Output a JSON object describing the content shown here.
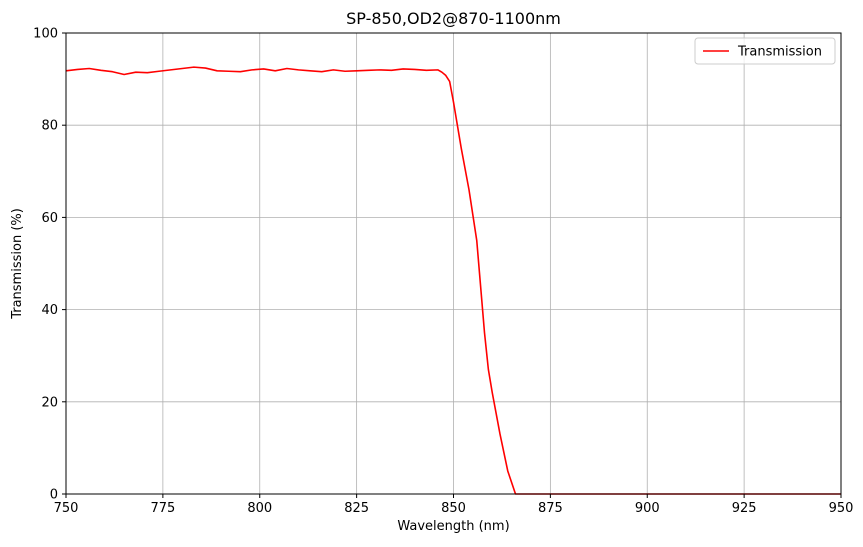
{
  "chart_data": {
    "type": "line",
    "title": "SP-850,OD2@870-1100nm",
    "xlabel": "Wavelength (nm)",
    "ylabel": "Transmission (%)",
    "xlim": [
      750,
      950
    ],
    "ylim": [
      0,
      100
    ],
    "xticks": [
      750,
      775,
      800,
      825,
      850,
      875,
      900,
      925,
      950
    ],
    "yticks": [
      0,
      20,
      40,
      60,
      80,
      100
    ],
    "grid": true,
    "legend_position": "top-right",
    "series": [
      {
        "name": "Transmission",
        "color": "#ff0000",
        "x": [
          750,
          753,
          756,
          759,
          762,
          765,
          768,
          771,
          774,
          777,
          780,
          783,
          786,
          789,
          792,
          795,
          798,
          801,
          804,
          807,
          810,
          813,
          816,
          819,
          822,
          825,
          828,
          831,
          834,
          837,
          840,
          843,
          846,
          847,
          848,
          849,
          850,
          852,
          854,
          856,
          857,
          858,
          859,
          860,
          862,
          864,
          866,
          870,
          880,
          900,
          925,
          950
        ],
        "values": [
          91.8,
          92.1,
          92.3,
          91.9,
          91.6,
          91.0,
          91.5,
          91.4,
          91.7,
          92.0,
          92.3,
          92.6,
          92.4,
          91.8,
          91.7,
          91.6,
          92.0,
          92.2,
          91.8,
          92.3,
          92.0,
          91.8,
          91.6,
          92.0,
          91.7,
          91.8,
          91.9,
          92.0,
          91.9,
          92.2,
          92.1,
          91.9,
          92.0,
          91.5,
          90.8,
          89.5,
          85.0,
          75.0,
          66.0,
          55.0,
          45.0,
          35.0,
          27.0,
          22.0,
          13.0,
          5.0,
          0.0,
          0.0,
          0.0,
          0.0,
          0.0,
          0.0
        ]
      }
    ]
  }
}
